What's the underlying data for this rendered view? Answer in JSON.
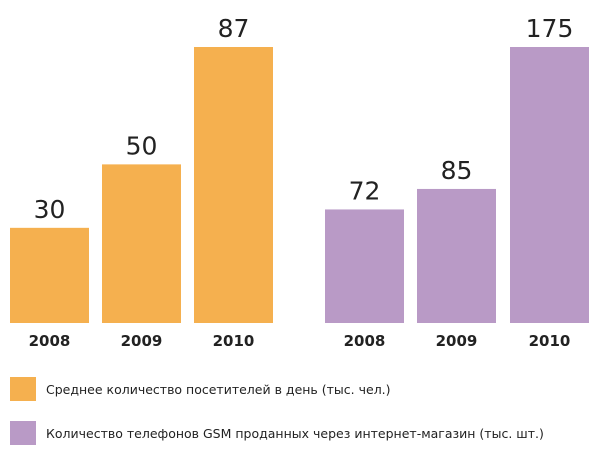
{
  "colors": {
    "visitors": "#f5b04f",
    "phones": "#b99ac6"
  },
  "chart_data": [
    {
      "type": "bar",
      "categories": [
        "2008",
        "2009",
        "2010"
      ],
      "series": [
        {
          "name": "Среднее количество посетителей в день (тыс. чел.)",
          "values": [
            30,
            50,
            87
          ],
          "color": "#f5b04f"
        }
      ],
      "title": "",
      "xlabel": "",
      "ylabel": "",
      "ylim": [
        0,
        87
      ],
      "grid": false,
      "data_labels": true,
      "legend": "bottom-left"
    },
    {
      "type": "bar",
      "categories": [
        "2008",
        "2009",
        "2010"
      ],
      "series": [
        {
          "name": "Количество телефонов GSM проданных через интернет-магазин (тыс. шт.)",
          "values": [
            72,
            85,
            175
          ],
          "color": "#b99ac6"
        }
      ],
      "title": "",
      "xlabel": "",
      "ylabel": "",
      "ylim": [
        0,
        175
      ],
      "grid": false,
      "data_labels": true,
      "legend": "bottom-left"
    }
  ],
  "legend": [
    {
      "label": "Среднее количество посетителей в день (тыс. чел.)",
      "color": "#f5b04f"
    },
    {
      "label": "Количество телефонов GSM проданных через интернет-магазин (тыс. шт.)",
      "color": "#b99ac6"
    }
  ]
}
